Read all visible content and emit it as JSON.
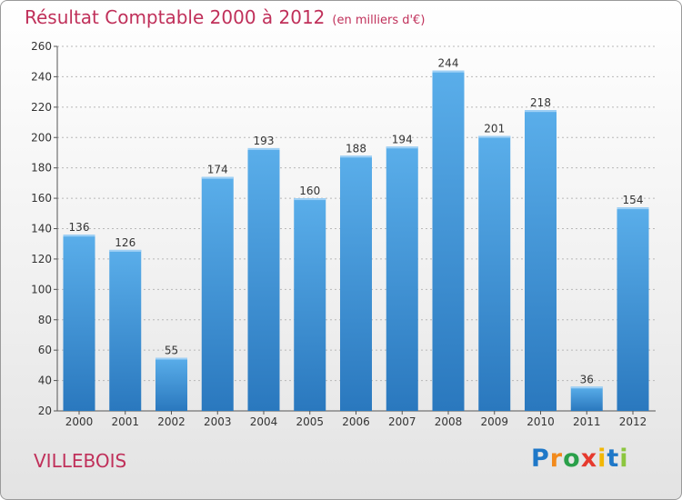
{
  "header": {
    "title": "Résultat Comptable 2000 à 2012",
    "subtitle": "(en milliers d'€)"
  },
  "commune": "VILLEBOIS",
  "logo": {
    "text": "Proxiti",
    "letters": [
      "P",
      "r",
      "o",
      "x",
      "i",
      "t",
      "i"
    ],
    "colors": [
      "#1f78c8",
      "#f28a1c",
      "#2aa04a",
      "#e63a2e",
      "#f2b705",
      "#1f78c8",
      "#8cc63f"
    ]
  },
  "chart_data": {
    "type": "bar",
    "title": "Résultat Comptable 2000 à 2012",
    "xlabel": "",
    "ylabel": "",
    "categories": [
      "2000",
      "2001",
      "2002",
      "2003",
      "2004",
      "2005",
      "2006",
      "2007",
      "2008",
      "2009",
      "2010",
      "2011",
      "2012"
    ],
    "values": [
      136,
      126,
      55,
      174,
      193,
      160,
      188,
      194,
      244,
      201,
      218,
      36,
      154
    ],
    "ylim": [
      20,
      260
    ],
    "yticks": [
      20,
      40,
      60,
      80,
      100,
      120,
      140,
      160,
      180,
      200,
      220,
      240,
      260
    ],
    "grid": true,
    "bar_color": "#4a9fe0"
  }
}
